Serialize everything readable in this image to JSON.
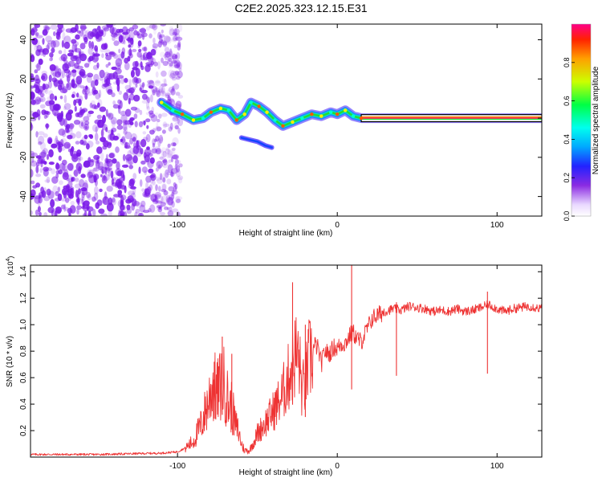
{
  "title": "C2E2.2025.323.12.15.E31",
  "colors": {
    "scatter": "#7a18e8",
    "trace": "#ee3333",
    "frame": "#000000"
  },
  "chart_data": [
    {
      "type": "heatmap",
      "name": "spectrogram",
      "xlabel": "Height of straight line (km)",
      "ylabel": "Frequency (Hz)",
      "xlim": [
        -192,
        128
      ],
      "ylim": [
        -50,
        48
      ],
      "xticks": [
        -100,
        0,
        100
      ],
      "yticks": [
        -40,
        -20,
        0,
        20,
        40
      ],
      "xtick_labels": [
        "-100",
        "0",
        "100"
      ],
      "ytick_labels": [
        "-40",
        "-20",
        "0",
        "20",
        "40"
      ],
      "noise_region_x": [
        -192,
        -98
      ],
      "signal_track": [
        {
          "x": -110,
          "y": 8
        },
        {
          "x": -103,
          "y": 4
        },
        {
          "x": -97,
          "y": 2
        },
        {
          "x": -90,
          "y": -1
        },
        {
          "x": -84,
          "y": 0
        },
        {
          "x": -79,
          "y": 3
        },
        {
          "x": -73,
          "y": 5
        },
        {
          "x": -68,
          "y": 4
        },
        {
          "x": -63,
          "y": -1
        },
        {
          "x": -58,
          "y": 2
        },
        {
          "x": -54,
          "y": 8
        },
        {
          "x": -49,
          "y": 6
        },
        {
          "x": -44,
          "y": 3
        },
        {
          "x": -39,
          "y": -1
        },
        {
          "x": -34,
          "y": -4
        },
        {
          "x": -28,
          "y": -2
        },
        {
          "x": -22,
          "y": 0
        },
        {
          "x": -16,
          "y": 2
        },
        {
          "x": -10,
          "y": 1
        },
        {
          "x": -4,
          "y": 3
        },
        {
          "x": 0,
          "y": 2
        },
        {
          "x": 5,
          "y": 4
        },
        {
          "x": 10,
          "y": 1
        },
        {
          "x": 15,
          "y": 0
        },
        {
          "x": 30,
          "y": 0
        },
        {
          "x": 60,
          "y": 0
        },
        {
          "x": 90,
          "y": 0
        },
        {
          "x": 110,
          "y": 0
        },
        {
          "x": 128,
          "y": 0
        }
      ],
      "side_track": [
        {
          "x": -60,
          "y": -10
        },
        {
          "x": -55,
          "y": -11
        },
        {
          "x": -50,
          "y": -12
        },
        {
          "x": -45,
          "y": -14
        },
        {
          "x": -41,
          "y": -15
        }
      ],
      "colorbar": {
        "label": "Normalized spectral amplitude",
        "range": [
          0.0,
          1.0
        ],
        "ticks": [
          0.0,
          0.2,
          0.4,
          0.6,
          0.8
        ],
        "tick_labels": [
          "0.0",
          "0.2",
          "0.4",
          "0.6",
          "0.8"
        ]
      }
    },
    {
      "type": "line",
      "name": "snr",
      "xlabel": "Height of straight line (km)",
      "ylabel": "SNR (10 * v/v)",
      "exponent_label": "(x10",
      "exponent_power": "4",
      "exponent_close": ")",
      "xlim": [
        -192,
        128
      ],
      "ylim": [
        0,
        1.45
      ],
      "xticks": [
        -100,
        0,
        100
      ],
      "yticks": [
        0.2,
        0.4,
        0.6,
        0.8,
        1.0,
        1.2,
        1.4
      ],
      "xtick_labels": [
        "-100",
        "0",
        "100"
      ],
      "ytick_labels": [
        "0.2",
        "0.4",
        "0.6",
        "0.8",
        "1.0",
        "1.2",
        "1.4"
      ],
      "series": [
        {
          "name": "SNR",
          "x": [
            -192,
            -150,
            -110,
            -100,
            -95,
            -90,
            -85,
            -80,
            -78,
            -75,
            -72,
            -70,
            -68,
            -66,
            -64,
            -62,
            -60,
            -58,
            -55,
            -52,
            -50,
            -45,
            -40,
            -35,
            -30,
            -28,
            -26,
            -24,
            -22,
            -20,
            -18,
            -16,
            -14,
            -12,
            -10,
            -8,
            -5,
            -2,
            0,
            2,
            5,
            8,
            10,
            12,
            15,
            18,
            20,
            22,
            25,
            30,
            35,
            40,
            45,
            50,
            55,
            60,
            65,
            70,
            75,
            80,
            85,
            90,
            95,
            100,
            105,
            110,
            115,
            120,
            128
          ],
          "y": [
            0.02,
            0.02,
            0.03,
            0.04,
            0.07,
            0.12,
            0.25,
            0.45,
            0.55,
            0.48,
            0.58,
            0.52,
            0.4,
            0.38,
            0.25,
            0.2,
            0.1,
            0.05,
            0.05,
            0.12,
            0.18,
            0.26,
            0.35,
            0.45,
            0.62,
            0.72,
            0.78,
            0.74,
            0.5,
            0.55,
            0.72,
            0.77,
            0.85,
            0.82,
            0.7,
            0.8,
            0.78,
            0.83,
            0.82,
            0.85,
            0.86,
            0.92,
            0.94,
            0.9,
            0.87,
            0.95,
            1.0,
            1.05,
            1.07,
            1.1,
            1.12,
            1.11,
            1.14,
            1.13,
            1.12,
            1.1,
            1.11,
            1.1,
            1.12,
            1.1,
            1.11,
            1.13,
            1.15,
            1.12,
            1.1,
            1.12,
            1.13,
            1.14,
            1.12
          ]
        }
      ],
      "spikes": [
        {
          "x": -77,
          "y": 0.72
        },
        {
          "x": -72,
          "y": 0.91
        },
        {
          "x": -66,
          "y": 0.78
        },
        {
          "x": -28,
          "y": 1.32
        },
        {
          "x": -20,
          "y": 1.0
        },
        {
          "x": 9,
          "y": 1.45
        },
        {
          "x": 37,
          "y": 1.17
        },
        {
          "x": 94,
          "y": 1.25
        }
      ]
    }
  ]
}
